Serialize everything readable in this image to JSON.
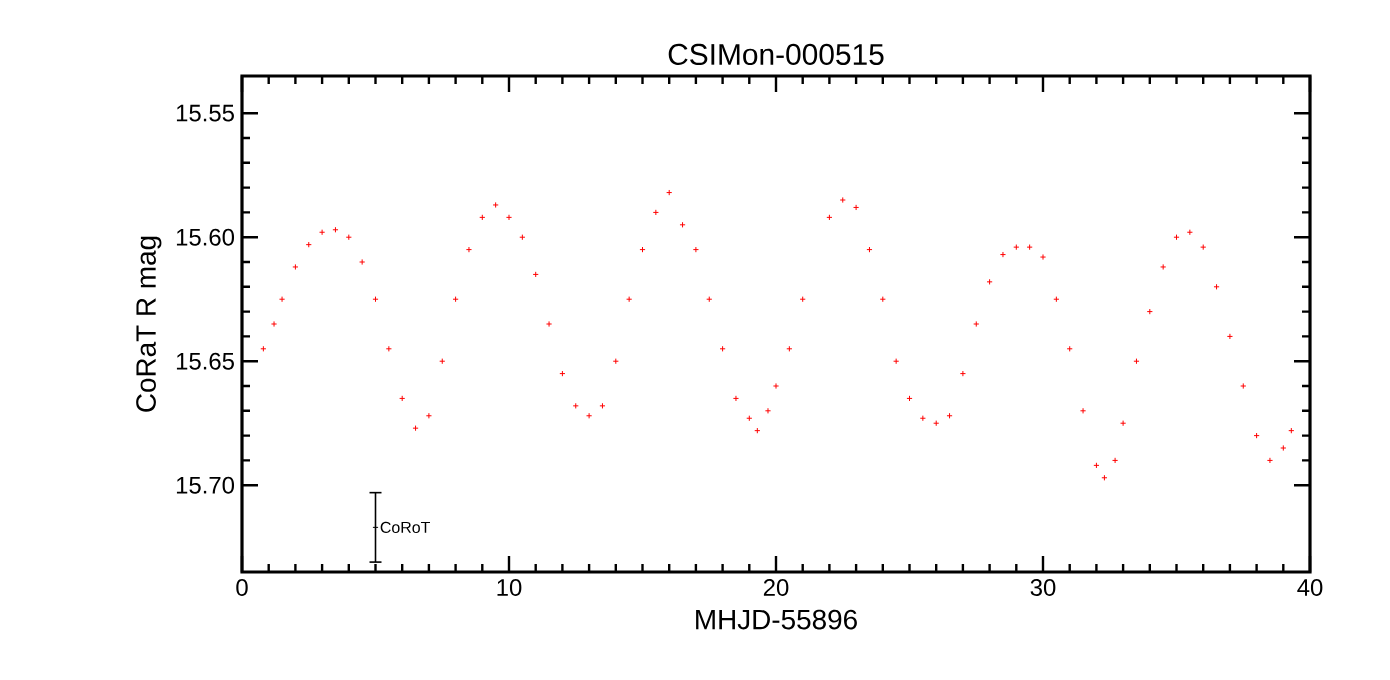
{
  "chart_data": {
    "type": "scatter",
    "title": "CSIMon-000515",
    "xlabel": "MHJD-55896",
    "ylabel": "CoRaT R mag",
    "xlim": [
      0,
      40
    ],
    "ylim": [
      15.735,
      15.535
    ],
    "xticks": [
      0,
      10,
      20,
      30,
      40
    ],
    "yticks": [
      15.55,
      {
        "value": 15.6,
        "label": "15.60"
      },
      15.65,
      {
        "value": 15.7,
        "label": "15.70"
      }
    ],
    "marker": "cross",
    "series": [
      {
        "color": "#ff0000",
        "x": [
          0.8,
          1.2,
          1.5,
          2.0,
          2.5,
          3.0,
          3.5,
          4.0,
          4.5,
          5.0,
          5.5,
          6.0,
          6.5,
          7.0,
          7.5,
          8.0,
          8.5,
          9.0,
          9.5,
          10.0,
          10.5,
          11.0,
          11.5,
          12.0,
          12.5,
          13.0,
          13.5,
          14.0,
          14.5,
          15.0,
          15.5,
          16.0,
          16.5,
          17.0,
          17.5,
          18.0,
          18.5,
          19.0,
          19.3,
          19.7,
          20.0,
          20.5,
          21.0,
          22.0,
          22.5,
          23.0,
          23.5,
          24.0,
          24.5,
          25.0,
          25.5,
          26.0,
          26.5,
          27.0,
          27.5,
          28.0,
          28.5,
          29.0,
          29.5,
          30.0,
          30.5,
          31.0,
          31.5,
          32.0,
          32.3,
          32.7,
          33.0,
          33.5,
          34.0,
          34.5,
          35.0,
          35.5,
          36.0,
          36.5,
          37.0,
          37.5,
          38.0,
          38.5,
          39.0,
          39.3
        ],
        "values": [
          15.645,
          15.635,
          15.625,
          15.612,
          15.603,
          15.598,
          15.597,
          15.6,
          15.61,
          15.625,
          15.645,
          15.665,
          15.677,
          15.672,
          15.65,
          15.625,
          15.605,
          15.592,
          15.587,
          15.592,
          15.6,
          15.615,
          15.635,
          15.655,
          15.668,
          15.672,
          15.668,
          15.65,
          15.625,
          15.605,
          15.59,
          15.582,
          15.595,
          15.605,
          15.625,
          15.645,
          15.665,
          15.673,
          15.678,
          15.67,
          15.66,
          15.645,
          15.625,
          15.592,
          15.585,
          15.588,
          15.605,
          15.625,
          15.65,
          15.665,
          15.673,
          15.675,
          15.672,
          15.655,
          15.635,
          15.618,
          15.607,
          15.604,
          15.604,
          15.608,
          15.625,
          15.645,
          15.67,
          15.692,
          15.697,
          15.69,
          15.675,
          15.65,
          15.63,
          15.612,
          15.6,
          15.598,
          15.604,
          15.62,
          15.64,
          15.66,
          15.68,
          15.69,
          15.685,
          15.678
        ]
      },
      {
        "name": "CoRoT",
        "color": "#000000",
        "x": [
          5
        ],
        "values": [
          15.717
        ],
        "errors": [
          0.014
        ]
      }
    ]
  }
}
